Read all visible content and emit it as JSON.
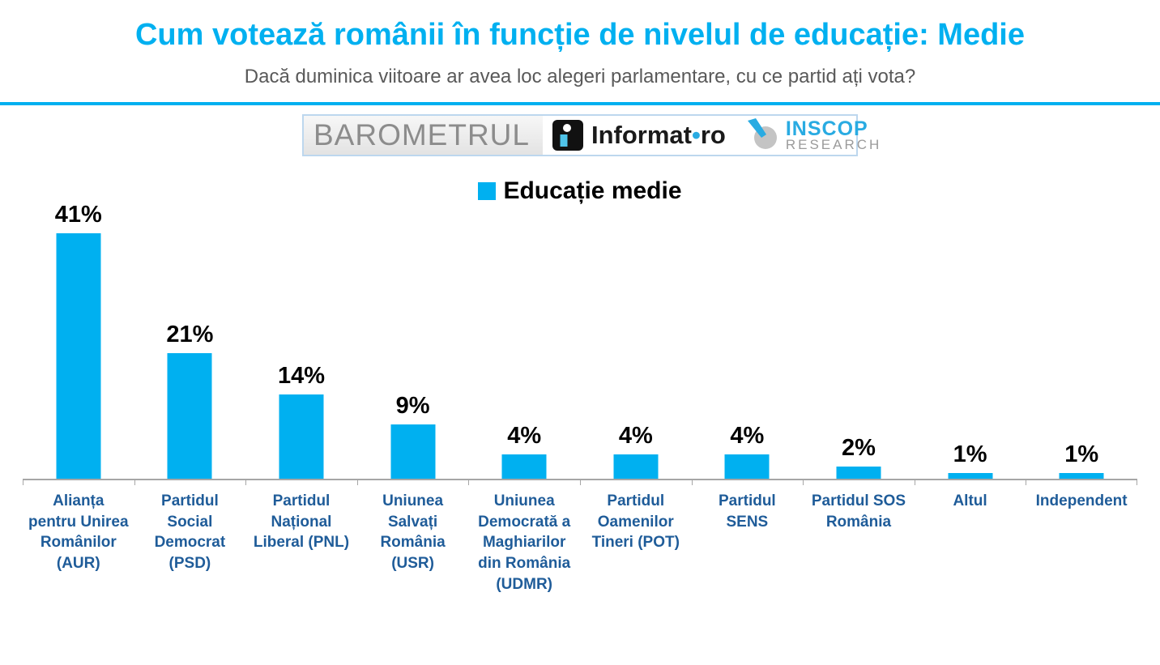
{
  "title": "Cum votează românii în funcție de nivelul de educație: Medie",
  "subtitle": "Dacă duminica viitoare ar avea loc alegeri parlamentare, cu ce partid ați vota?",
  "logos": {
    "barometrul_text": "BAROMETRUL",
    "informat": {
      "name": "Informat",
      "dot": "•",
      "tld": "ro"
    },
    "inscop": {
      "line1": "INSCOP",
      "line2": "RESEARCH"
    }
  },
  "legend": {
    "label": "Educație medie",
    "color": "#00B0F0"
  },
  "chart_data": {
    "type": "bar",
    "title": "Cum votează românii în funcție de nivelul de educație: Medie",
    "series_name": "Educație medie",
    "categories": [
      "Alianța pentru Unirea Românilor (AUR)",
      "Partidul Social Democrat (PSD)",
      "Partidul Național Liberal (PNL)",
      "Uniunea Salvați România (USR)",
      "Uniunea Democrată a Maghiarilor din România (UDMR)",
      "Partidul Oamenilor Tineri (POT)",
      "Partidul SENS",
      "Partidul SOS România",
      "Altul",
      "Independent"
    ],
    "display_labels": [
      "Alianța\npentru Unirea\nRomânilor\n(AUR)",
      "Partidul\nSocial\nDemocrat\n(PSD)",
      "Partidul\nNațional\nLiberal (PNL)",
      "Uniunea\nSalvați\nRomânia\n(USR)",
      "Uniunea\nDemocrată a\nMaghiarilor\ndin România\n(UDMR)",
      "Partidul\nOamenilor\nTineri (POT)",
      "Partidul\nSENS",
      "Partidul SOS\nRomânia",
      "Altul",
      "Independent"
    ],
    "values": [
      41,
      21,
      14,
      9,
      4,
      4,
      4,
      2,
      1,
      1
    ],
    "value_labels": [
      "41%",
      "21%",
      "14%",
      "9%",
      "4%",
      "4%",
      "4%",
      "2%",
      "1%",
      "1%"
    ],
    "unit": "%",
    "xlabel": "",
    "ylabel": "",
    "ylim": [
      0,
      45
    ],
    "grid": false,
    "legend_position": "top",
    "bar_color": "#00B0F0",
    "axis_color": "#A6A6A6",
    "category_label_color": "#1F5C99"
  },
  "colors": {
    "accent_cyan": "#00B0F0",
    "subtitle_gray": "#595959",
    "category_blue": "#1F5C99",
    "axis_gray": "#A6A6A6"
  }
}
